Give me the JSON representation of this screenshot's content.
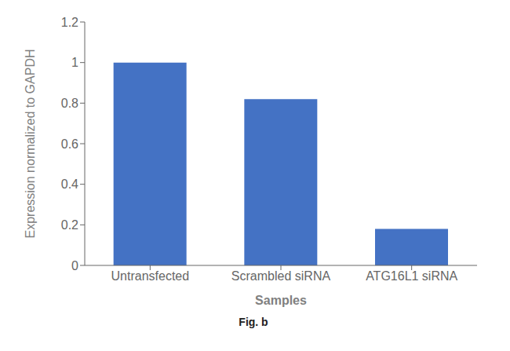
{
  "chart_data": {
    "type": "bar",
    "categories": [
      "Untransfected",
      "Scrambled siRNA",
      "ATG16L1 siRNA"
    ],
    "values": [
      1.0,
      0.82,
      0.18
    ],
    "color": "#4472c4",
    "xlabel": "Samples",
    "ylabel": "Expression normalized to GAPDH",
    "ylim": [
      0,
      1.2
    ],
    "yticks": [
      0,
      0.2,
      0.4,
      0.6,
      0.8,
      1,
      1.2
    ],
    "grid": false,
    "annotations": [
      "Fig. b"
    ]
  }
}
